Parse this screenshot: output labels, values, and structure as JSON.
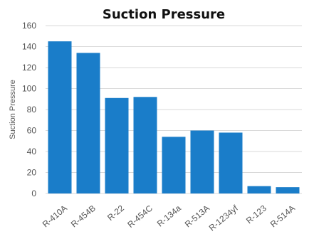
{
  "chart_data": {
    "type": "bar",
    "title": "Suction Pressure",
    "xlabel": "",
    "ylabel": "Suction Pressure",
    "categories": [
      "R-410A",
      "R-454B",
      "R-22",
      "R-454C",
      "R-134a",
      "R-513A",
      "R-1234yf",
      "R-123",
      "R-514A"
    ],
    "values": [
      145,
      134,
      91,
      92,
      54,
      60,
      58,
      7,
      6
    ],
    "ylim": [
      0,
      160
    ],
    "yticks": [
      0,
      20,
      40,
      60,
      80,
      100,
      120,
      140,
      160
    ],
    "grid": true,
    "legend": "none",
    "colors": {
      "bar": "#1a7dc9",
      "grid": "#d9d9d9",
      "text": "#555555",
      "title": "#111111"
    }
  }
}
